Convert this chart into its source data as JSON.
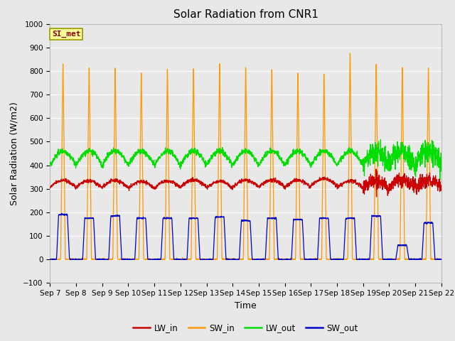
{
  "title": "Solar Radiation from CNR1",
  "xlabel": "Time",
  "ylabel": "Solar Radiation (W/m2)",
  "ylim": [
    -100,
    1000
  ],
  "annotation": "SI_met",
  "legend_labels": [
    "LW_in",
    "SW_in",
    "LW_out",
    "SW_out"
  ],
  "legend_colors": [
    "#cc0000",
    "#ff9900",
    "#00dd00",
    "#0000cc"
  ],
  "line_colors": {
    "LW_in": "#cc0000",
    "SW_in": "#ff9900",
    "LW_out": "#00dd00",
    "SW_out": "#0000cc"
  },
  "tick_labels": [
    "Sep 7",
    "Sep 8",
    "Sep 9",
    "Sep 10",
    "Sep 11",
    "Sep 12",
    "Sep 13",
    "Sep 14",
    "Sep 15",
    "Sep 16",
    "Sep 17",
    "Sep 18",
    "Sep 19",
    "Sep 20",
    "Sep 21",
    "Sep 22"
  ],
  "plot_bg_color": "#e8e8e8",
  "grid_color": "#ffffff",
  "title_fontsize": 11,
  "axis_label_fontsize": 9,
  "tick_fontsize": 7.5
}
